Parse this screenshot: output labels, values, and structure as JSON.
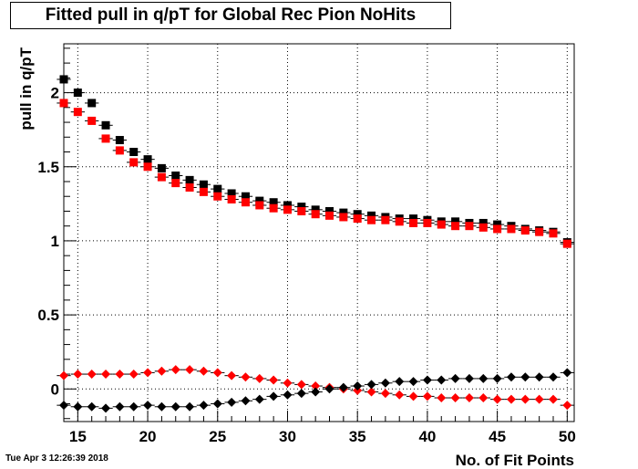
{
  "header": {
    "title": "Fitted pull in q/pT for Global Rec Pion NoHits"
  },
  "footer": {
    "timestamp": "Tue Apr  3 12:26:39 2018"
  },
  "chart_data": {
    "type": "scatter",
    "title": "Fitted pull in q/pT for Global Rec Pion NoHits",
    "xlabel": "No. of Fit Points",
    "ylabel": "pull in q/pT",
    "xlim": [
      14,
      50.5
    ],
    "ylim": [
      -0.22,
      2.33
    ],
    "x_ticks": [
      15,
      20,
      25,
      30,
      35,
      40,
      45,
      50
    ],
    "y_ticks": [
      0,
      0.5,
      1,
      1.5,
      2
    ],
    "grid": true,
    "legend": "none",
    "x": [
      14,
      15,
      16,
      17,
      18,
      19,
      20,
      21,
      22,
      23,
      24,
      25,
      26,
      27,
      28,
      29,
      30,
      31,
      32,
      33,
      34,
      35,
      36,
      37,
      38,
      39,
      40,
      41,
      42,
      43,
      44,
      45,
      46,
      47,
      48,
      49,
      50
    ],
    "series": [
      {
        "marker": "square",
        "color": "#000000",
        "values": [
          2.09,
          2.0,
          1.93,
          1.78,
          1.68,
          1.6,
          1.55,
          1.49,
          1.44,
          1.41,
          1.38,
          1.35,
          1.32,
          1.3,
          1.27,
          1.26,
          1.24,
          1.23,
          1.21,
          1.2,
          1.19,
          1.18,
          1.17,
          1.16,
          1.15,
          1.15,
          1.14,
          1.13,
          1.13,
          1.12,
          1.12,
          1.11,
          1.1,
          1.08,
          1.07,
          1.06,
          0.99
        ]
      },
      {
        "marker": "square",
        "color": "#ff0000",
        "values": [
          1.93,
          1.87,
          1.81,
          1.69,
          1.61,
          1.53,
          1.5,
          1.43,
          1.39,
          1.36,
          1.33,
          1.3,
          1.28,
          1.26,
          1.24,
          1.22,
          1.21,
          1.2,
          1.18,
          1.17,
          1.16,
          1.15,
          1.14,
          1.14,
          1.13,
          1.12,
          1.12,
          1.11,
          1.1,
          1.1,
          1.09,
          1.08,
          1.08,
          1.07,
          1.06,
          1.05,
          0.98
        ]
      },
      {
        "marker": "diamond",
        "color": "#ff0000",
        "values": [
          0.09,
          0.1,
          0.1,
          0.1,
          0.1,
          0.1,
          0.11,
          0.12,
          0.13,
          0.13,
          0.12,
          0.11,
          0.09,
          0.08,
          0.07,
          0.06,
          0.04,
          0.03,
          0.02,
          0.01,
          0.0,
          -0.01,
          -0.02,
          -0.03,
          -0.04,
          -0.05,
          -0.05,
          -0.06,
          -0.06,
          -0.06,
          -0.06,
          -0.07,
          -0.07,
          -0.07,
          -0.07,
          -0.07,
          -0.11
        ]
      },
      {
        "marker": "diamond",
        "color": "#000000",
        "values": [
          -0.11,
          -0.12,
          -0.12,
          -0.13,
          -0.12,
          -0.12,
          -0.11,
          -0.12,
          -0.12,
          -0.12,
          -0.11,
          -0.1,
          -0.09,
          -0.08,
          -0.07,
          -0.05,
          -0.04,
          -0.03,
          -0.02,
          0.0,
          0.01,
          0.02,
          0.03,
          0.04,
          0.05,
          0.05,
          0.06,
          0.06,
          0.07,
          0.07,
          0.07,
          0.07,
          0.08,
          0.08,
          0.08,
          0.08,
          0.11
        ]
      }
    ]
  }
}
